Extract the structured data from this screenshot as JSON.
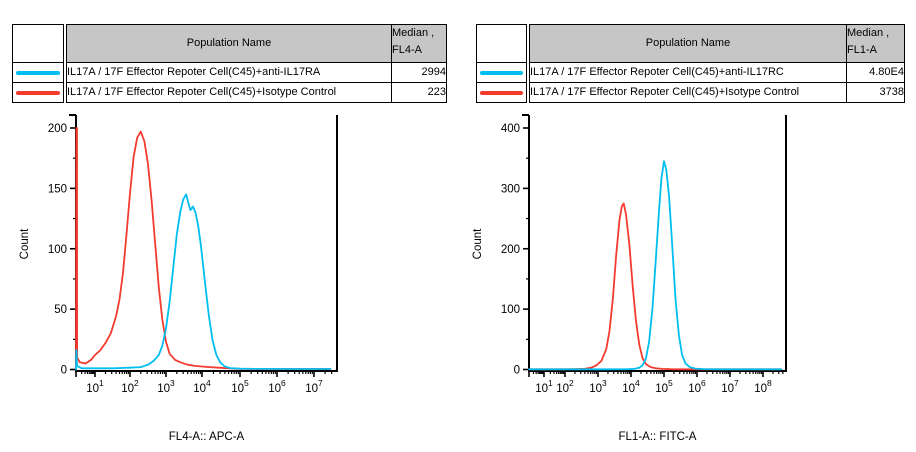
{
  "colors": {
    "cyan": "#00BEF0",
    "red": "#F43B30",
    "table_header_bg": "#C6C6C6",
    "axis": "#000000"
  },
  "tables": [
    {
      "header": {
        "population": "Population Name",
        "median_line1": "Median ,",
        "median_line2": "FL4-A"
      },
      "rows": [
        {
          "color": "#00BEF0",
          "name": "IL17A / 17F Effector Repoter Cell(C45)+anti-IL17RA",
          "median": "2994"
        },
        {
          "color": "#F43B30",
          "name": "IL17A / 17F Effector Repoter Cell(C45)+Isotype Control",
          "median": "223"
        }
      ]
    },
    {
      "header": {
        "population": "Population Name",
        "median_line1": "Median ,",
        "median_line2": "FL1-A"
      },
      "rows": [
        {
          "color": "#00BEF0",
          "name": "IL17A / 17F Effector Repoter Cell(C45)+anti-IL17RC",
          "median": "4.80E4"
        },
        {
          "color": "#F43B30",
          "name": "IL17A / 17F Effector Repoter Cell(C45)+Isotype Control",
          "median": "3738"
        }
      ]
    }
  ],
  "chart_data": [
    {
      "type": "line",
      "title": "",
      "xlabel": "FL4-A:: APC-A",
      "ylabel": "Count",
      "x_scale": "log",
      "x_tick_decades": [
        1,
        2,
        3,
        4,
        5,
        6,
        7
      ],
      "x_range_decades": [
        0,
        7.5
      ],
      "y_ticks": [
        0,
        50,
        100,
        150,
        200
      ],
      "ylim": [
        0,
        212
      ],
      "grid": false,
      "legend": "none",
      "series": [
        {
          "name": "IL17A / 17F Effector Repoter Cell(C45)+anti-IL17RA",
          "color": "#00BEF0",
          "median": 2994,
          "points": [
            [
              0,
              0
            ],
            [
              0.02,
              16
            ],
            [
              0.05,
              3
            ],
            [
              0.3,
              1
            ],
            [
              0.9,
              1
            ],
            [
              1.5,
              1
            ],
            [
              2.0,
              1.5
            ],
            [
              2.3,
              2
            ],
            [
              2.5,
              4
            ],
            [
              2.65,
              7
            ],
            [
              2.8,
              12
            ],
            [
              2.9,
              20
            ],
            [
              3.0,
              34
            ],
            [
              3.1,
              56
            ],
            [
              3.2,
              84
            ],
            [
              3.3,
              112
            ],
            [
              3.4,
              131
            ],
            [
              3.48,
              141
            ],
            [
              3.56,
              145
            ],
            [
              3.62,
              138
            ],
            [
              3.68,
              132
            ],
            [
              3.75,
              135
            ],
            [
              3.82,
              130
            ],
            [
              3.9,
              118
            ],
            [
              3.98,
              100
            ],
            [
              4.08,
              72
            ],
            [
              4.18,
              45
            ],
            [
              4.28,
              24
            ],
            [
              4.38,
              12
            ],
            [
              4.48,
              6
            ],
            [
              4.6,
              2.5
            ],
            [
              4.75,
              1.2
            ],
            [
              5.0,
              0.7
            ],
            [
              5.5,
              0.5
            ],
            [
              6.5,
              0.4
            ],
            [
              7.45,
              0.4
            ]
          ]
        },
        {
          "name": "IL17A / 17F Effector Repoter Cell(C45)+Isotype Control",
          "color": "#F43B30",
          "median": 223,
          "points": [
            [
              0,
              0
            ],
            [
              0.02,
              200
            ],
            [
              0.05,
              200
            ],
            [
              0.06,
              10
            ],
            [
              0.2,
              6
            ],
            [
              0.5,
              5
            ],
            [
              0.8,
              8
            ],
            [
              1.0,
              12
            ],
            [
              1.15,
              16
            ],
            [
              1.3,
              22
            ],
            [
              1.45,
              30
            ],
            [
              1.6,
              44
            ],
            [
              1.7,
              58
            ],
            [
              1.8,
              80
            ],
            [
              1.9,
              112
            ],
            [
              2.0,
              146
            ],
            [
              2.1,
              176
            ],
            [
              2.2,
              192
            ],
            [
              2.3,
              197
            ],
            [
              2.4,
              189
            ],
            [
              2.5,
              170
            ],
            [
              2.6,
              140
            ],
            [
              2.7,
              104
            ],
            [
              2.8,
              68
            ],
            [
              2.9,
              41
            ],
            [
              3.0,
              23
            ],
            [
              3.1,
              13
            ],
            [
              3.25,
              8
            ],
            [
              3.4,
              6
            ],
            [
              3.6,
              4
            ],
            [
              3.8,
              3
            ],
            [
              4.0,
              2.5
            ],
            [
              4.2,
              2
            ],
            [
              4.45,
              1.5
            ],
            [
              4.7,
              1
            ],
            [
              5.0,
              0.6
            ],
            [
              5.6,
              0.4
            ],
            [
              6.5,
              0.4
            ],
            [
              7.45,
              0.4
            ]
          ]
        }
      ]
    },
    {
      "type": "line",
      "title": "",
      "xlabel": "FL1-A:: FITC-A",
      "ylabel": "Count",
      "x_scale": "log",
      "x_tick_decades": [
        1,
        2,
        3,
        4,
        5,
        6,
        7,
        8
      ],
      "x_range_decades": [
        0,
        8.7
      ],
      "y_ticks": [
        0,
        100,
        200,
        300,
        400
      ],
      "ylim": [
        0,
        420
      ],
      "grid": false,
      "legend": "none",
      "series": [
        {
          "name": "IL17A / 17F Effector Repoter Cell(C45)+anti-IL17RC",
          "color": "#00BEF0",
          "median": 48000,
          "points": [
            [
              0,
              0.3
            ],
            [
              3.2,
              0.3
            ],
            [
              3.9,
              0.5
            ],
            [
              4.1,
              1
            ],
            [
              4.25,
              3
            ],
            [
              4.35,
              7
            ],
            [
              4.45,
              18
            ],
            [
              4.55,
              46
            ],
            [
              4.65,
              102
            ],
            [
              4.75,
              182
            ],
            [
              4.85,
              262
            ],
            [
              4.92,
              316
            ],
            [
              5.0,
              345
            ],
            [
              5.07,
              331
            ],
            [
              5.15,
              288
            ],
            [
              5.25,
              204
            ],
            [
              5.35,
              117
            ],
            [
              5.45,
              57
            ],
            [
              5.55,
              24
            ],
            [
              5.65,
              10
            ],
            [
              5.78,
              4
            ],
            [
              5.95,
              1.5
            ],
            [
              6.2,
              0.7
            ],
            [
              6.7,
              0.4
            ],
            [
              8.55,
              0.4
            ]
          ]
        },
        {
          "name": "IL17A / 17F Effector Repoter Cell(C45)+Isotype Control",
          "color": "#F43B30",
          "median": 3738,
          "points": [
            [
              0,
              0.3
            ],
            [
              1.5,
              0.3
            ],
            [
              2.3,
              0.6
            ],
            [
              2.6,
              1.2
            ],
            [
              2.8,
              3
            ],
            [
              2.95,
              7
            ],
            [
              3.1,
              14
            ],
            [
              3.25,
              34
            ],
            [
              3.35,
              64
            ],
            [
              3.45,
              118
            ],
            [
              3.55,
              188
            ],
            [
              3.65,
              248
            ],
            [
              3.72,
              270
            ],
            [
              3.78,
              275
            ],
            [
              3.85,
              257
            ],
            [
              3.95,
              206
            ],
            [
              4.05,
              140
            ],
            [
              4.15,
              80
            ],
            [
              4.25,
              41
            ],
            [
              4.35,
              19
            ],
            [
              4.45,
              9
            ],
            [
              4.6,
              4
            ],
            [
              4.75,
              2
            ],
            [
              4.95,
              1
            ],
            [
              5.2,
              0.5
            ],
            [
              5.7,
              0.3
            ],
            [
              8.55,
              0.3
            ]
          ]
        }
      ]
    }
  ]
}
